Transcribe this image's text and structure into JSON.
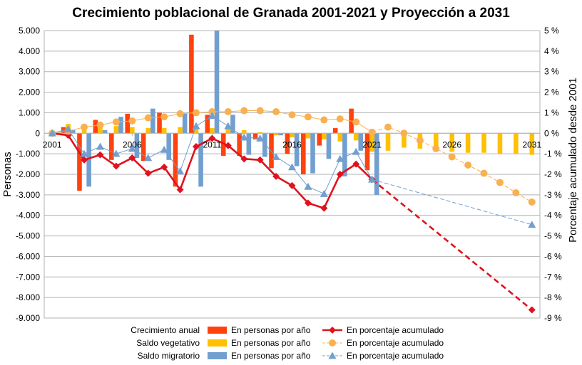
{
  "chart_data": {
    "type": "bar+line",
    "title": "Crecimiento poblacional de Granada 2001-2021 y Proyección a 2031",
    "ylabel": "Personas",
    "y2label": "Porcentaje acumulado desde 2001",
    "ylim": [
      -9000,
      5000
    ],
    "y2lim": [
      -9,
      5
    ],
    "y_ticks": [
      "5.000",
      "4.000",
      "3.000",
      "2.000",
      "1.000",
      "0",
      "-1.000",
      "-2.000",
      "-3.000",
      "-4.000",
      "-5.000",
      "-6.000",
      "-7.000",
      "-8.000",
      "-9.000"
    ],
    "y2_ticks": [
      "5 %",
      "4 %",
      "3 %",
      "2 %",
      "1 %",
      "0 %",
      "-1 %",
      "-2 %",
      "-3 %",
      "-4 %",
      "-5 %",
      "-6 %",
      "-7 %",
      "-8 %",
      "-9 %"
    ],
    "x_ticks": [
      "2001",
      "2006",
      "2011",
      "2016",
      "2021",
      "2026",
      "2031"
    ],
    "years": [
      2001,
      2002,
      2003,
      2004,
      2005,
      2006,
      2007,
      2008,
      2009,
      2010,
      2011,
      2012,
      2013,
      2014,
      2015,
      2016,
      2017,
      2018,
      2019,
      2020,
      2021,
      2022,
      2023,
      2024,
      2025,
      2026,
      2027,
      2028,
      2029,
      2030,
      2031
    ],
    "bar_series": [
      {
        "name": "Crecimiento anual",
        "label": "En personas por año",
        "color": "#ff420e",
        "values": [
          0,
          300,
          -2800,
          650,
          -1300,
          950,
          -1350,
          1000,
          -2600,
          4800,
          900,
          -1100,
          -1100,
          -300,
          -1700,
          -1000,
          -2000,
          -600,
          250,
          1200,
          -1800,
          null,
          null,
          null,
          null,
          null,
          null,
          null,
          null,
          null,
          null
        ]
      },
      {
        "name": "Saldo vegetativo",
        "label": "En personas por año",
        "color": "#ffc000",
        "values": [
          0,
          450,
          300,
          500,
          350,
          300,
          250,
          250,
          300,
          300,
          250,
          200,
          150,
          50,
          -100,
          -200,
          -250,
          -300,
          -400,
          -350,
          -900,
          -850,
          -700,
          -750,
          -850,
          -900,
          -950,
          -950,
          -1000,
          -1000,
          -1050
        ]
      },
      {
        "name": "Saldo migratorio",
        "label": "En personas por año",
        "color": "#729fcf",
        "values": [
          0,
          150,
          -2600,
          150,
          800,
          -1200,
          1200,
          -1300,
          950,
          -2600,
          5000,
          900,
          -1050,
          -1150,
          -100,
          -1600,
          -1950,
          -1250,
          -2100,
          -850,
          -3000,
          null,
          null,
          null,
          null,
          null,
          null,
          null,
          null,
          null,
          null
        ]
      }
    ],
    "line_series": [
      {
        "name": "Crecimiento anual",
        "label": "En porcentaje acumulado",
        "color": "#e0121d",
        "values": [
          0,
          -0.1,
          -1.3,
          -1.05,
          -1.6,
          -1.2,
          -1.95,
          -1.65,
          -2.75,
          -0.65,
          -0.25,
          -0.6,
          -1.25,
          -1.3,
          -2.1,
          -2.55,
          -3.4,
          -3.65,
          -2.0,
          -1.5,
          -2.25,
          null,
          null,
          null,
          null,
          null,
          null,
          null,
          null,
          null,
          -8.6
        ]
      },
      {
        "name": "Saldo vegetativo",
        "label": "En porcentaje acumulado",
        "color": "#f9b050",
        "values": [
          0,
          0.1,
          0.3,
          0.4,
          0.55,
          0.6,
          0.75,
          0.8,
          0.95,
          1.0,
          1.05,
          1.05,
          1.1,
          1.1,
          1.05,
          0.9,
          0.8,
          0.65,
          0.7,
          0.55,
          0.05,
          0.3,
          0.0,
          -0.35,
          -0.75,
          -1.15,
          -1.55,
          -1.95,
          -2.4,
          -2.9,
          -3.35
        ]
      },
      {
        "name": "Saldo migratorio",
        "label": "En porcentaje acumulado",
        "color": "#729fcf",
        "values": [
          0,
          0.2,
          -1.0,
          -0.65,
          -1.0,
          -0.75,
          -1.2,
          -0.8,
          -1.85,
          0.35,
          0.85,
          0.35,
          -0.2,
          -0.25,
          -1.15,
          -1.65,
          -2.6,
          -2.95,
          -1.25,
          -0.9,
          -2.25,
          null,
          null,
          null,
          null,
          null,
          null,
          null,
          null,
          null,
          -4.45
        ]
      }
    ],
    "legend": {
      "row_names": [
        "Crecimiento anual",
        "Saldo vegetativo",
        "Saldo migratorio"
      ],
      "bar_label": "En personas por año",
      "line_label": "En porcentaje acumulado"
    },
    "grid": true,
    "legend_placement": "bottom"
  }
}
